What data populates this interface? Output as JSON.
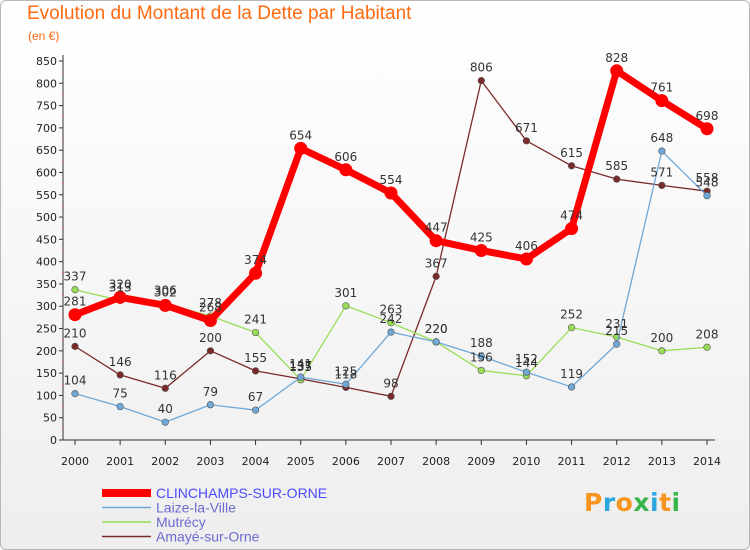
{
  "header": {
    "title": "Evolution du Montant de la Dette par Habitant",
    "unit": "(en €)"
  },
  "logo": {
    "text": "ProxitI",
    "letters": [
      "P",
      "r",
      "o",
      "x",
      "i",
      "t",
      "i"
    ],
    "colors": [
      "#f7941d",
      "#2aa7df",
      "#f7941d",
      "#39b54a",
      "#2aa7df",
      "#f7941d",
      "#39b54a"
    ]
  },
  "chart_data": {
    "type": "line",
    "title": "Evolution du Montant de la Dette par Habitant",
    "subtitle": "(en €)",
    "x": [
      "2000",
      "2001",
      "2002",
      "2003",
      "2004",
      "2005",
      "2006",
      "2007",
      "2008",
      "2009",
      "2010",
      "2011",
      "2012",
      "2013",
      "2014"
    ],
    "ylim": [
      0,
      850
    ],
    "yticks": [
      0,
      50,
      100,
      150,
      200,
      250,
      300,
      350,
      400,
      450,
      500,
      550,
      600,
      650,
      700,
      750,
      800,
      850
    ],
    "grid": false,
    "legend_position": "bottom-left",
    "series": [
      {
        "name": "CLINCHAMPS-SUR-ORNE",
        "color": "#ff0000",
        "values": [
          281,
          320,
          302,
          268,
          374,
          654,
          606,
          554,
          447,
          425,
          406,
          474,
          828,
          761,
          698
        ]
      },
      {
        "name": "Laize-la-Ville",
        "color": "#6fa8d6",
        "values": [
          104,
          75,
          40,
          79,
          67,
          141,
          125,
          242,
          220,
          188,
          152,
          119,
          215,
          648,
          548
        ]
      },
      {
        "name": "Mutrécy",
        "color": "#99dd55",
        "values": [
          337,
          313,
          306,
          278,
          241,
          135,
          301,
          263,
          220,
          156,
          144,
          252,
          231,
          200,
          208
        ]
      },
      {
        "name": "Amayé-sur-Orne",
        "color": "#7a2a2a",
        "values": [
          210,
          146,
          116,
          200,
          155,
          137,
          118,
          98,
          367,
          806,
          671,
          615,
          585,
          571,
          558
        ]
      }
    ]
  }
}
